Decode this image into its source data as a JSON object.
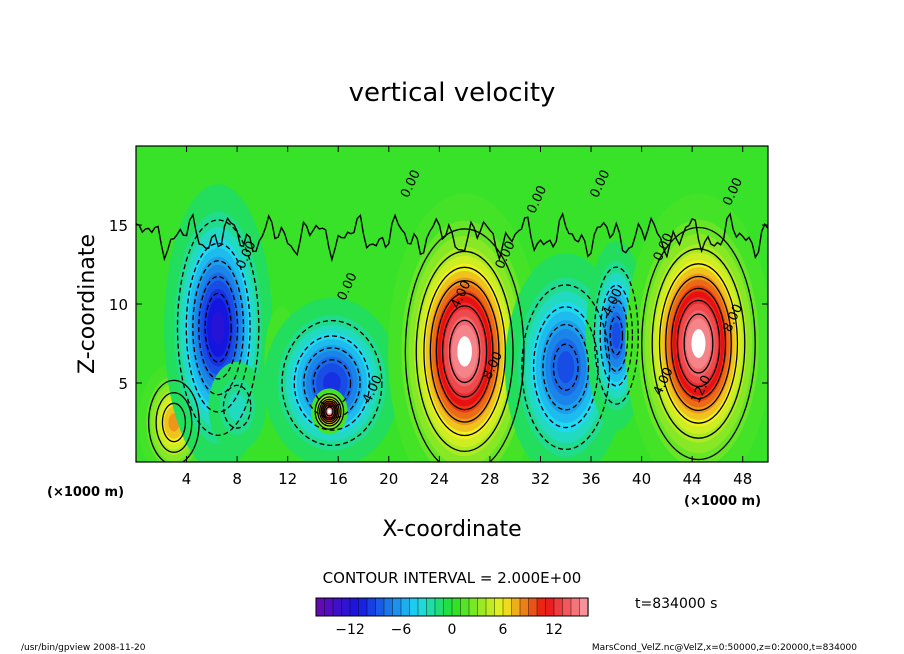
{
  "chart_data": {
    "type": "heatmap",
    "title": "vertical velocity",
    "xlabel": "X-coordinate",
    "ylabel": "Z-coordinate",
    "x_unit_left": "(×1000 m)",
    "x_unit_right": "(×1000 m)",
    "xlim": [
      0,
      50
    ],
    "ylim": [
      0,
      20
    ],
    "x_ticks": [
      {
        "v": 4,
        "label": "4"
      },
      {
        "v": 8,
        "label": "8"
      },
      {
        "v": 12,
        "label": "12"
      },
      {
        "v": 16,
        "label": "16"
      },
      {
        "v": 20,
        "label": "20"
      },
      {
        "v": 24,
        "label": "24"
      },
      {
        "v": 28,
        "label": "28"
      },
      {
        "v": 32,
        "label": "32"
      },
      {
        "v": 36,
        "label": "36"
      },
      {
        "v": 40,
        "label": "40"
      },
      {
        "v": 44,
        "label": "44"
      },
      {
        "v": 48,
        "label": "48"
      }
    ],
    "y_ticks": [
      {
        "v": 5,
        "label": "5"
      },
      {
        "v": 10,
        "label": "10"
      },
      {
        "v": 15,
        "label": "15"
      }
    ],
    "contour_interval_text": "CONTOUR INTERVAL = 2.000E+00",
    "time_text": "t=834000 s",
    "colorbar": {
      "min": -16,
      "max": 16,
      "tick_labels": [
        {
          "v": -12,
          "label": "−12"
        },
        {
          "v": -6,
          "label": "−6"
        },
        {
          "v": 0,
          "label": "0"
        },
        {
          "v": 6,
          "label": "6"
        },
        {
          "v": 12,
          "label": "12"
        }
      ]
    },
    "cells": [
      {
        "x": 3,
        "z": 2.5,
        "amp": 8,
        "sx": 1.2,
        "sz": 1.6
      },
      {
        "x": 6.5,
        "z": 8.5,
        "amp": -12,
        "sx": 1.7,
        "sz": 3.6
      },
      {
        "x": 8,
        "z": 3.5,
        "amp": -3,
        "sx": 1.2,
        "sz": 1.5
      },
      {
        "x": 11.5,
        "z": 6.5,
        "amp": 2,
        "sx": 0.8,
        "sz": 2
      },
      {
        "x": 15.5,
        "z": 5,
        "amp": -10,
        "sx": 2.2,
        "sz": 2.2
      },
      {
        "x": 15.3,
        "z": 3.2,
        "amp": 16,
        "sx": 0.55,
        "sz": 0.55
      },
      {
        "x": 26,
        "z": 7,
        "amp": 16,
        "sx": 2.3,
        "sz": 3.8
      },
      {
        "x": 34,
        "z": 6,
        "amp": -9,
        "sx": 2,
        "sz": 3
      },
      {
        "x": 38,
        "z": 8,
        "amp": -9,
        "sx": 1,
        "sz": 2.5
      },
      {
        "x": 44.5,
        "z": 7.5,
        "amp": 16,
        "sx": 2.2,
        "sz": 3.6
      }
    ],
    "contour_labels": [
      {
        "x": 22,
        "z": 17.5,
        "text": "0.00"
      },
      {
        "x": 32,
        "z": 16.5,
        "text": "0.00"
      },
      {
        "x": 37,
        "z": 17.5,
        "text": "0.00"
      },
      {
        "x": 47.5,
        "z": 17,
        "text": "0.00"
      },
      {
        "x": 9,
        "z": 13,
        "text": "0.00"
      },
      {
        "x": 17,
        "z": 11,
        "text": "0.00"
      },
      {
        "x": 29.5,
        "z": 13,
        "text": "0.00"
      },
      {
        "x": 42,
        "z": 13.5,
        "text": "0.00"
      },
      {
        "x": 26,
        "z": 10.5,
        "text": "4.00"
      },
      {
        "x": 28.5,
        "z": 6,
        "text": "8.00"
      },
      {
        "x": 19,
        "z": 4.5,
        "text": "4.00"
      },
      {
        "x": 38,
        "z": 10,
        "text": "4.00"
      },
      {
        "x": 47.5,
        "z": 9,
        "text": "8.00"
      },
      {
        "x": 42,
        "z": 5,
        "text": "4.00"
      },
      {
        "x": 45,
        "z": 4.5,
        "text": "12.0"
      }
    ]
  },
  "footer": {
    "left": "/usr/bin/gpview   2008-11-20",
    "right": "MarsCond_VelZ.nc@VelZ,x=0:50000,z=0:20000,t=834000"
  },
  "colors": {
    "neg_deep": "#6a0ab0",
    "neg_blue": "#1515e0",
    "neg_cyan": "#20d8f0",
    "zero_green": "#22e02a",
    "pos_yellow": "#f0f020",
    "pos_red": "#e81010",
    "pos_pink": "#f8a0a8"
  }
}
